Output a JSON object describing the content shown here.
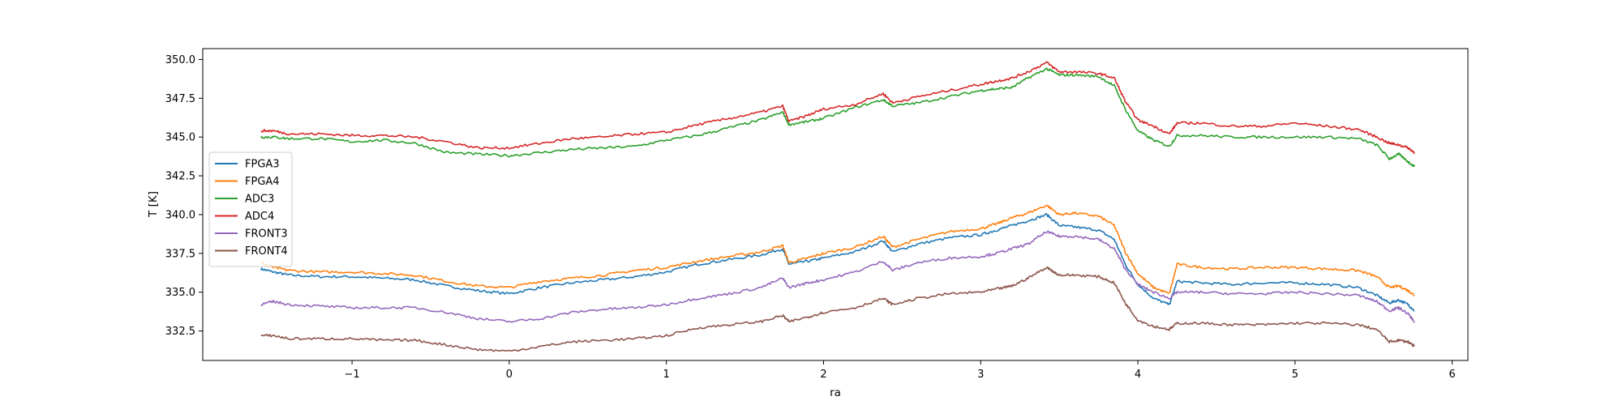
{
  "chart_data": {
    "type": "line",
    "xlabel": "ra",
    "ylabel": "T [K]",
    "xlim": [
      -1.95,
      6.1
    ],
    "ylim": [
      330.6,
      350.7
    ],
    "xticks": [
      -1,
      0,
      1,
      2,
      3,
      4,
      5,
      6
    ],
    "xtick_labels": [
      "−1",
      "0",
      "1",
      "2",
      "3",
      "4",
      "5",
      "6"
    ],
    "yticks": [
      332.5,
      335.0,
      337.5,
      340.0,
      342.5,
      345.0,
      347.5,
      350.0
    ],
    "ytick_labels": [
      "332.5",
      "335.0",
      "337.5",
      "340.0",
      "342.5",
      "345.0",
      "347.5",
      "350.0"
    ],
    "grid": false,
    "legend_position": "center-left",
    "x": [
      -1.58,
      -1.5,
      -1.4,
      -1.2,
      -1.0,
      -0.8,
      -0.6,
      -0.4,
      -0.2,
      0.0,
      0.2,
      0.4,
      0.6,
      0.8,
      1.0,
      1.2,
      1.4,
      1.6,
      1.74,
      1.78,
      1.9,
      2.0,
      2.2,
      2.38,
      2.44,
      2.6,
      2.8,
      3.0,
      3.1,
      3.2,
      3.3,
      3.42,
      3.5,
      3.6,
      3.75,
      3.85,
      3.92,
      4.0,
      4.1,
      4.2,
      4.25,
      4.4,
      4.6,
      4.8,
      5.0,
      5.2,
      5.4,
      5.52,
      5.6,
      5.66,
      5.72,
      5.76
    ],
    "series": [
      {
        "name": "FPGA3",
        "color": "#1f77b4",
        "values": [
          336.5,
          336.3,
          336.1,
          336.0,
          336.0,
          335.9,
          335.8,
          335.4,
          335.1,
          334.9,
          335.3,
          335.6,
          335.8,
          336.0,
          336.3,
          336.8,
          337.1,
          337.4,
          337.8,
          336.8,
          337.0,
          337.2,
          337.6,
          338.3,
          337.6,
          338.1,
          338.5,
          338.7,
          339.0,
          339.3,
          339.6,
          340.0,
          339.3,
          339.2,
          339.0,
          338.4,
          336.8,
          335.5,
          334.6,
          334.2,
          335.7,
          335.6,
          335.5,
          335.6,
          335.6,
          335.5,
          335.3,
          334.8,
          334.3,
          334.5,
          334.2,
          333.8
        ]
      },
      {
        "name": "FPGA4",
        "color": "#ff7f0e",
        "values": [
          336.9,
          336.6,
          336.4,
          336.3,
          336.3,
          336.2,
          336.1,
          335.7,
          335.4,
          335.3,
          335.7,
          335.9,
          336.1,
          336.4,
          336.6,
          337.0,
          337.3,
          337.6,
          338.0,
          336.9,
          337.2,
          337.5,
          337.9,
          338.6,
          337.9,
          338.4,
          338.9,
          339.1,
          339.4,
          339.8,
          340.1,
          340.6,
          340.0,
          340.1,
          339.9,
          339.3,
          337.6,
          336.2,
          335.3,
          334.9,
          336.8,
          336.6,
          336.5,
          336.6,
          336.6,
          336.5,
          336.4,
          336.0,
          335.3,
          335.4,
          335.1,
          334.8
        ]
      },
      {
        "name": "ADC3",
        "color": "#2ca02c",
        "values": [
          345.0,
          345.0,
          344.9,
          344.9,
          344.7,
          344.8,
          344.6,
          344.0,
          343.9,
          343.8,
          344.0,
          344.2,
          344.3,
          344.4,
          344.8,
          345.1,
          345.6,
          346.1,
          346.6,
          345.8,
          346.0,
          346.2,
          346.9,
          347.4,
          347.0,
          347.2,
          347.6,
          348.0,
          348.1,
          348.2,
          348.8,
          349.4,
          349.0,
          349.0,
          348.9,
          348.3,
          346.8,
          345.4,
          344.8,
          344.4,
          345.1,
          345.1,
          345.0,
          345.0,
          345.0,
          345.0,
          344.9,
          344.5,
          343.6,
          343.9,
          343.4,
          343.1
        ]
      },
      {
        "name": "ADC4",
        "color": "#d62728",
        "values": [
          345.4,
          345.4,
          345.2,
          345.2,
          345.1,
          345.1,
          345.0,
          344.7,
          344.3,
          344.3,
          344.6,
          344.9,
          345.0,
          345.2,
          345.3,
          345.8,
          346.2,
          346.6,
          347.0,
          346.0,
          346.4,
          346.8,
          347.1,
          347.8,
          347.2,
          347.6,
          348.0,
          348.4,
          348.6,
          348.8,
          349.2,
          349.8,
          349.2,
          349.2,
          349.1,
          348.8,
          347.3,
          346.1,
          345.7,
          345.2,
          345.9,
          345.9,
          345.7,
          345.7,
          345.9,
          345.7,
          345.5,
          345.0,
          344.6,
          344.5,
          344.3,
          344.0
        ]
      },
      {
        "name": "FRONT3",
        "color": "#9467bd",
        "values": [
          334.2,
          334.4,
          334.2,
          334.1,
          334.0,
          334.0,
          334.0,
          333.7,
          333.3,
          333.1,
          333.3,
          333.7,
          333.9,
          334.0,
          334.2,
          334.6,
          334.9,
          335.3,
          335.9,
          335.3,
          335.6,
          335.8,
          336.3,
          337.0,
          336.4,
          336.9,
          337.2,
          337.3,
          337.5,
          337.8,
          338.1,
          338.9,
          338.6,
          338.6,
          338.4,
          337.8,
          336.5,
          335.5,
          335.0,
          334.6,
          335.0,
          335.0,
          334.9,
          334.9,
          335.0,
          334.9,
          334.8,
          334.4,
          333.8,
          334.0,
          333.6,
          333.1
        ]
      },
      {
        "name": "FRONT4",
        "color": "#8c564b",
        "values": [
          332.2,
          332.2,
          332.0,
          332.0,
          332.0,
          331.9,
          331.9,
          331.6,
          331.3,
          331.2,
          331.5,
          331.8,
          331.9,
          332.0,
          332.2,
          332.7,
          332.9,
          333.1,
          333.5,
          333.1,
          333.4,
          333.7,
          334.0,
          334.6,
          334.2,
          334.6,
          334.9,
          335.0,
          335.2,
          335.4,
          335.9,
          336.6,
          336.1,
          336.1,
          336.0,
          335.6,
          334.3,
          333.2,
          332.8,
          332.6,
          333.0,
          333.0,
          332.9,
          332.9,
          333.0,
          333.0,
          332.9,
          332.6,
          331.8,
          331.9,
          331.8,
          331.5
        ]
      }
    ]
  }
}
